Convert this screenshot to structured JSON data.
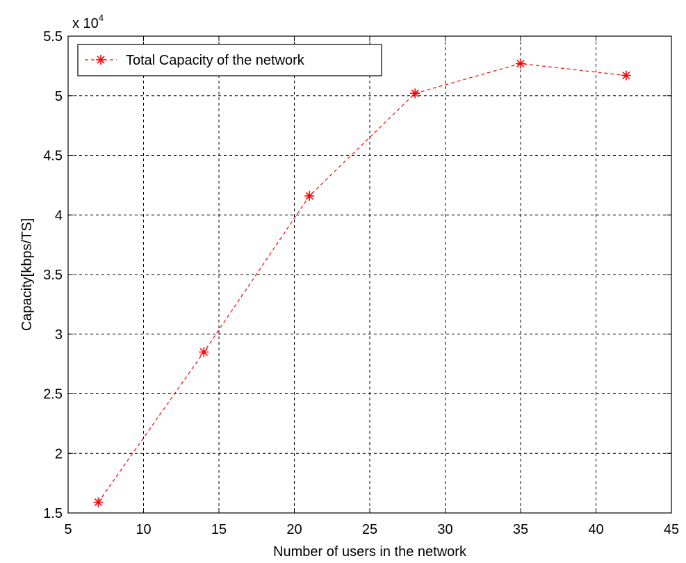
{
  "chart_data": {
    "type": "line",
    "title": "",
    "xlabel": "Number of users in the network",
    "ylabel": "Capacity[kbps/TS]",
    "xlim": [
      5,
      45
    ],
    "ylim": [
      1.5,
      5.5
    ],
    "y_scale_exponent_prefix": "x 10",
    "y_scale_exponent_power": "4",
    "xticks": [
      5,
      10,
      15,
      20,
      25,
      30,
      35,
      40,
      45
    ],
    "xtick_labels": [
      "5",
      "10",
      "15",
      "20",
      "25",
      "30",
      "35",
      "40",
      "45"
    ],
    "yticks": [
      1.5,
      2,
      2.5,
      3,
      3.5,
      4,
      4.5,
      5,
      5.5
    ],
    "ytick_labels": [
      "1.5",
      "2",
      "2.5",
      "3",
      "3.5",
      "4",
      "4.5",
      "5",
      "5.5"
    ],
    "grid": true,
    "legend_position": "top-left",
    "series": [
      {
        "name": "Total Capacity of the network",
        "color": "#ff0000",
        "line_style": "dashed",
        "marker": "asterisk",
        "x": [
          7,
          14,
          21,
          28,
          35,
          42
        ],
        "values": [
          1.59,
          2.85,
          4.16,
          5.02,
          5.27,
          5.17
        ]
      }
    ]
  }
}
